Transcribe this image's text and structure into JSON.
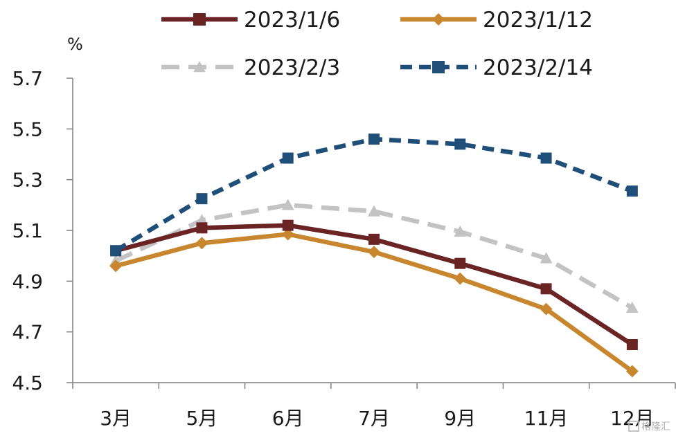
{
  "chart_data": {
    "type": "line",
    "title": "",
    "xlabel": "",
    "ylabel": "%",
    "categories": [
      "3月",
      "5月",
      "6月",
      "7月",
      "9月",
      "11月",
      "12月"
    ],
    "ylim": [
      4.5,
      5.7
    ],
    "yticks": [
      "4.5",
      "4.7",
      "4.9",
      "5.1",
      "5.3",
      "5.5",
      "5.7"
    ],
    "grid": false,
    "legend_position": "top",
    "series": [
      {
        "name": "2023/1/6",
        "values": [
          5.02,
          5.11,
          5.12,
          5.065,
          4.97,
          4.87,
          4.65
        ],
        "color": "#6b2424",
        "dash": "solid",
        "marker": "square"
      },
      {
        "name": "2023/1/12",
        "values": [
          4.96,
          5.05,
          5.085,
          5.015,
          4.91,
          4.79,
          4.545
        ],
        "color": "#c8872e",
        "dash": "solid",
        "marker": "diamond"
      },
      {
        "name": "2023/2/3",
        "values": [
          4.98,
          5.14,
          5.2,
          5.175,
          5.095,
          4.99,
          4.795
        ],
        "color": "#c3c3c3",
        "dash": "longdash",
        "marker": "triangle"
      },
      {
        "name": "2023/2/14",
        "values": [
          5.02,
          5.225,
          5.385,
          5.46,
          5.44,
          5.385,
          5.255
        ],
        "color": "#1f4e79",
        "dash": "dash",
        "marker": "square"
      }
    ],
    "watermark": "格隆汇"
  }
}
